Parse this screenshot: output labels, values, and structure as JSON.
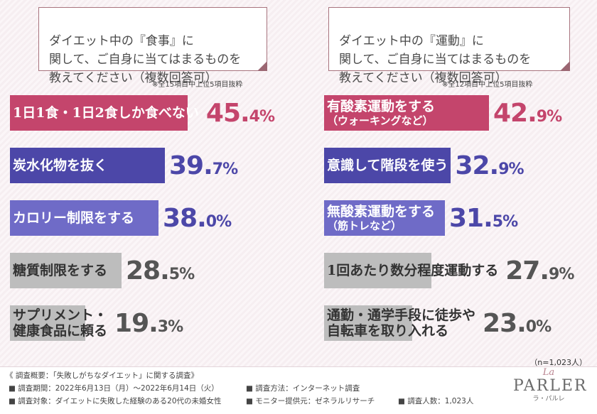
{
  "chart_data": [
    {
      "type": "bar",
      "title": "ダイエット中の『食事』に\n関して、ご自身に当てはまるものを\n教えてください（複数回答可）",
      "note": "※全15項目中上位5項目抜粋",
      "categories": [
        {
          "label": "1日1食・1日2食しか食べない",
          "sub": ""
        },
        {
          "label": "炭水化物を抜く",
          "sub": ""
        },
        {
          "label": "カロリー制限をする",
          "sub": ""
        },
        {
          "label": "糖質制限をする",
          "sub": ""
        },
        {
          "label": "サプリメント・",
          "sub": "健康食品に頼る"
        }
      ],
      "values": [
        45.4,
        39.7,
        38.0,
        28.5,
        19.3
      ],
      "value_labels": [
        {
          "int": "45.",
          "dec": "4%"
        },
        {
          "int": "39.",
          "dec": "7%"
        },
        {
          "int": "38.",
          "dec": "0%"
        },
        {
          "int": "28.",
          "dec": "5%"
        },
        {
          "int": "19.",
          "dec": "3%"
        }
      ],
      "colors": [
        "#c4456c",
        "#4c47a8",
        "#6f6bc7",
        "#bdbdbd",
        "#bdbdbd"
      ],
      "value_colors": [
        "#c4456c",
        "#4c47a8",
        "#4c47a8",
        "#555555",
        "#555555"
      ]
    },
    {
      "type": "bar",
      "title": "ダイエット中の『運動』に\n関して、ご自身に当てはまるものを\n教えてください（複数回答可）",
      "note": "※全12項目中上位5項目抜粋",
      "categories": [
        {
          "label": "有酸素運動をする",
          "sub": "（ウォーキングなど）"
        },
        {
          "label": "意識して階段を使う",
          "sub": ""
        },
        {
          "label": "無酸素運動をする",
          "sub": "（筋トレなど）"
        },
        {
          "label": "1回あたり数分程度運動する",
          "sub": ""
        },
        {
          "label": "通勤・通学手段に徒歩や",
          "sub": "自転車を取り入れる"
        }
      ],
      "values": [
        42.9,
        32.9,
        31.5,
        27.9,
        23.0
      ],
      "value_labels": [
        {
          "int": "42.",
          "dec": "9%"
        },
        {
          "int": "32.",
          "dec": "9%"
        },
        {
          "int": "31.",
          "dec": "5%"
        },
        {
          "int": "27.",
          "dec": "9%"
        },
        {
          "int": "23.",
          "dec": "0%"
        }
      ],
      "colors": [
        "#c4456c",
        "#4c47a8",
        "#6f6bc7",
        "#bdbdbd",
        "#bdbdbd"
      ],
      "value_colors": [
        "#c4456c",
        "#4c47a8",
        "#4c47a8",
        "#555555",
        "#555555"
      ]
    }
  ],
  "sample_note": "（n=1,023人）",
  "footer": {
    "title": "《 調査概要：「失敗しがちなダイエット」に関する調査》",
    "period": "■ 調査期間：2022年6月13日（月）～2022年6月14日（火）",
    "method": "■ 調査方法：インターネット調査",
    "target": "■ 調査対象：ダイエットに失敗した経験のある20代の未婚女性",
    "provider": "■ モニター提供元：ゼネラルリサーチ",
    "count": "■ 調査人数：1,023人"
  },
  "logo": {
    "la": "La",
    "name": "PARLER",
    "kana": "ラ・パルレ"
  }
}
